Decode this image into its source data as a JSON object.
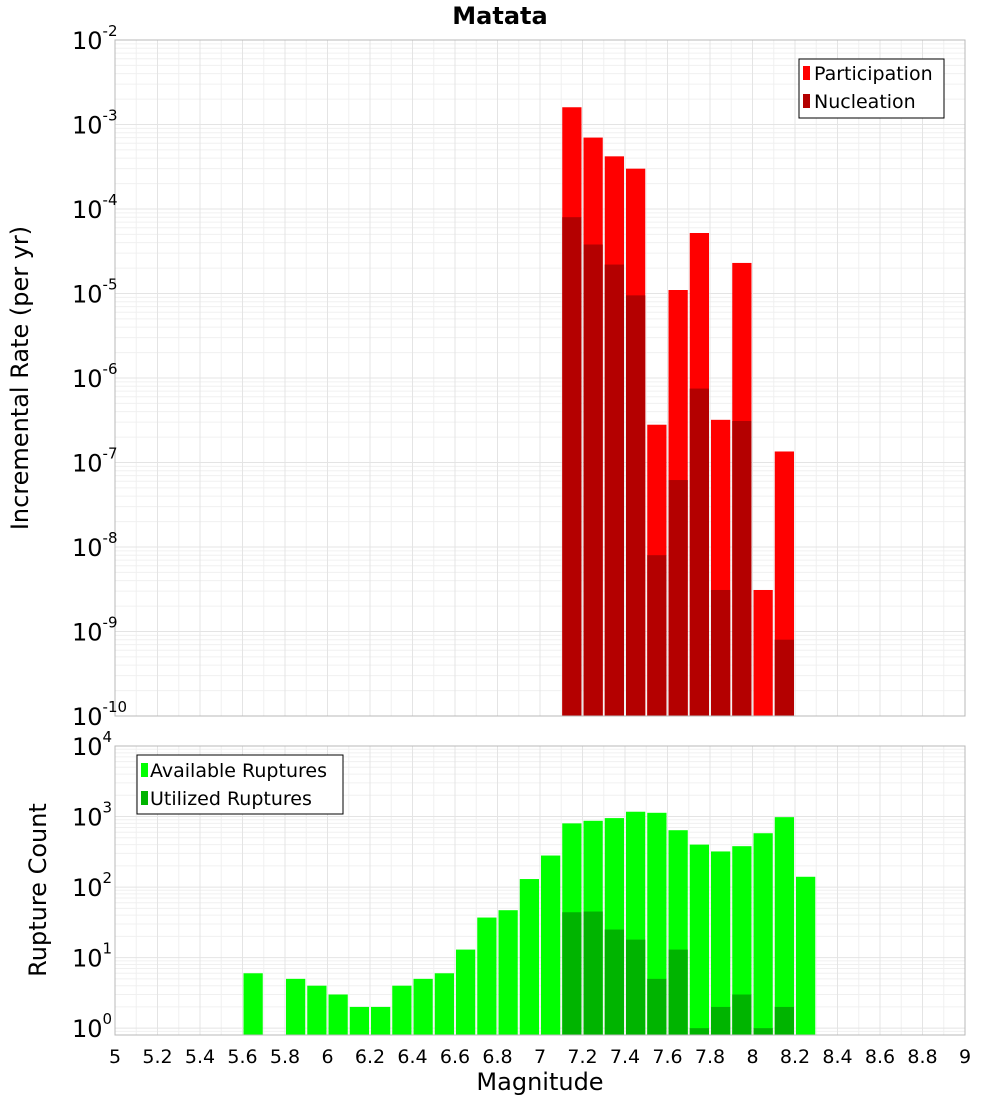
{
  "chart_data": [
    {
      "type": "bar",
      "title": "Matata",
      "xlabel": "",
      "ylabel": "Incremental Rate (per yr)",
      "y_scale": "log",
      "xlim": [
        5,
        9
      ],
      "ylim": [
        1e-10,
        0.01
      ],
      "bar_width": 0.1,
      "grid": true,
      "legend_position": "top-right",
      "y_ticks": [
        {
          "base": "10",
          "exp": "-2",
          "value": 0.01
        },
        {
          "base": "10",
          "exp": "-3",
          "value": 0.001
        },
        {
          "base": "10",
          "exp": "-4",
          "value": 0.0001
        },
        {
          "base": "10",
          "exp": "-5",
          "value": 1e-05
        },
        {
          "base": "10",
          "exp": "-6",
          "value": 1e-06
        },
        {
          "base": "10",
          "exp": "-7",
          "value": 1e-07
        },
        {
          "base": "10",
          "exp": "-8",
          "value": 1e-08
        },
        {
          "base": "10",
          "exp": "-9",
          "value": 1e-09
        },
        {
          "base": "10",
          "exp": "-10",
          "value": 1e-10
        }
      ],
      "x": [
        7.15,
        7.25,
        7.35,
        7.45,
        7.55,
        7.65,
        7.75,
        7.85,
        7.95,
        8.05,
        8.15
      ],
      "series": [
        {
          "name": "Participation",
          "color": "#ff0000",
          "values": [
            0.0016,
            0.0007,
            0.00042,
            0.0003,
            2.8e-07,
            1.1e-05,
            5.2e-05,
            3.2e-07,
            2.3e-05,
            3.1e-09,
            1.35e-07
          ]
        },
        {
          "name": "Nucleation",
          "color": "#b40000",
          "values": [
            8e-05,
            3.8e-05,
            2.2e-05,
            9.5e-06,
            8e-09,
            6.2e-08,
            7.5e-07,
            3.1e-09,
            3.1e-07,
            null,
            8e-10
          ]
        }
      ]
    },
    {
      "type": "bar",
      "title": "",
      "xlabel": "Magnitude",
      "ylabel": "Rupture Count",
      "y_scale": "log",
      "xlim": [
        5,
        9
      ],
      "ylim": [
        0.8,
        10000
      ],
      "bar_width": 0.1,
      "grid": true,
      "legend_position": "top-left",
      "x_ticks": [
        "5",
        "5.2",
        "5.4",
        "5.6",
        "5.8",
        "6",
        "6.2",
        "6.4",
        "6.6",
        "6.8",
        "7",
        "7.2",
        "7.4",
        "7.6",
        "7.8",
        "8",
        "8.2",
        "8.4",
        "8.6",
        "8.8",
        "9"
      ],
      "y_ticks": [
        {
          "base": "10",
          "exp": "4",
          "value": 10000
        },
        {
          "base": "10",
          "exp": "3",
          "value": 1000
        },
        {
          "base": "10",
          "exp": "2",
          "value": 100
        },
        {
          "base": "10",
          "exp": "1",
          "value": 10
        },
        {
          "base": "10",
          "exp": "0",
          "value": 1
        }
      ],
      "x": [
        5.65,
        5.85,
        5.95,
        6.05,
        6.15,
        6.25,
        6.35,
        6.45,
        6.55,
        6.65,
        6.75,
        6.85,
        6.95,
        7.05,
        7.15,
        7.25,
        7.35,
        7.45,
        7.55,
        7.65,
        7.75,
        7.85,
        7.95,
        8.05,
        8.15,
        8.25
      ],
      "series": [
        {
          "name": "Available Ruptures",
          "color": "#00ff00",
          "values": [
            6,
            5,
            4,
            3,
            2,
            2,
            4,
            5,
            6,
            13,
            37,
            47,
            130,
            280,
            800,
            870,
            950,
            1170,
            1130,
            640,
            400,
            320,
            380,
            580,
            980,
            140
          ]
        },
        {
          "name": "Utilized Ruptures",
          "color": "#00b400",
          "values": [
            null,
            null,
            null,
            null,
            null,
            null,
            null,
            null,
            null,
            null,
            null,
            null,
            null,
            null,
            44,
            45,
            25,
            18,
            5,
            13,
            1,
            2,
            3,
            1,
            2,
            null
          ]
        }
      ]
    }
  ]
}
